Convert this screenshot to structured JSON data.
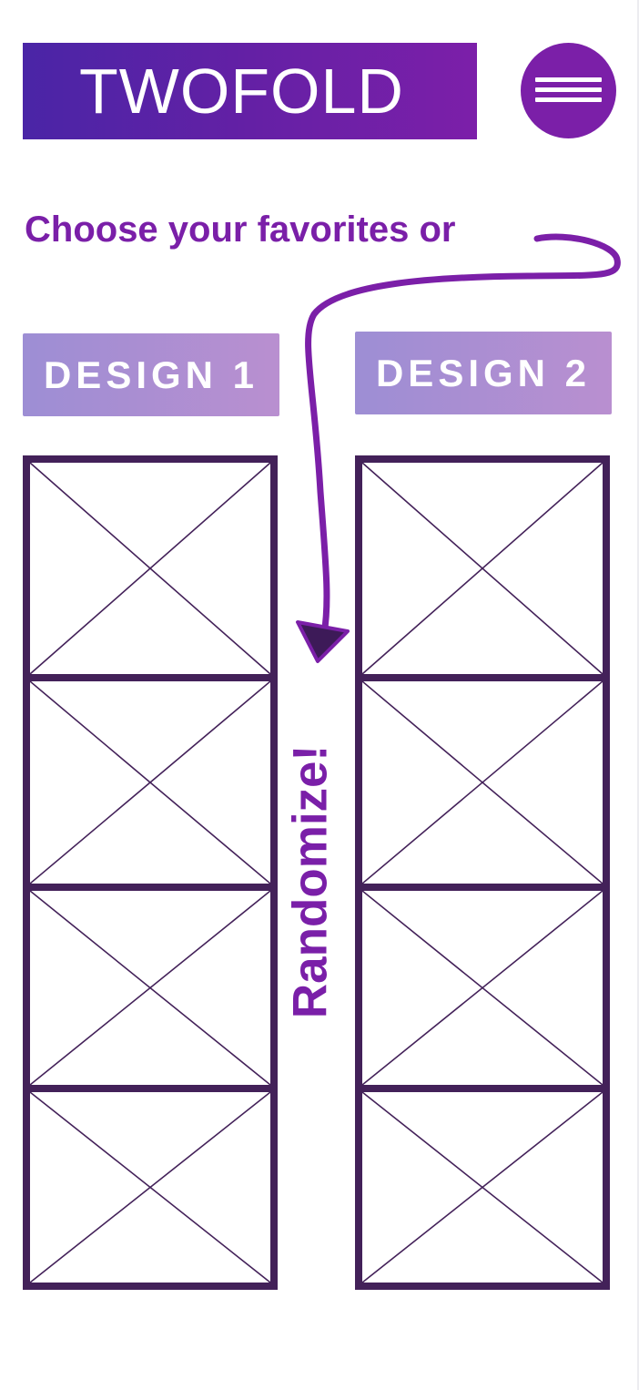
{
  "header": {
    "logo_text": "TWOFOLD",
    "menu_icon": "hamburger-icon"
  },
  "prompt": {
    "text": "Choose your favorites or"
  },
  "designs": [
    {
      "label": "DESIGN 1"
    },
    {
      "label": "DESIGN 2"
    }
  ],
  "randomize": {
    "label": "Randomize!"
  },
  "placeholder_icon": "image-placeholder-icon",
  "colors": {
    "primary_purple": "#7b1fa8",
    "logo_gradient_start": "#4a25a6",
    "frame_dark": "#432159",
    "button_gradient_start": "#9d8ed4",
    "button_gradient_end": "#b98fd0"
  }
}
